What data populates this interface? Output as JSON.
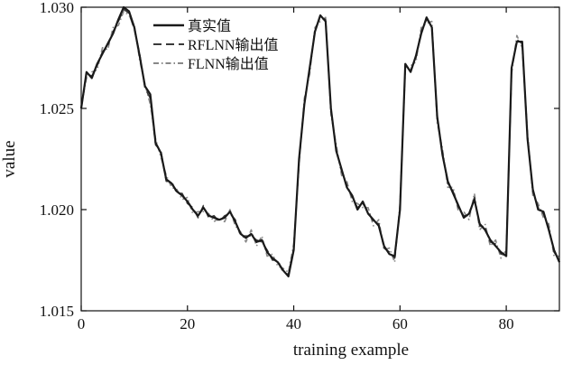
{
  "chart_data": {
    "type": "line",
    "title": "",
    "xlabel": "training example",
    "ylabel": "value",
    "xlim": [
      0,
      90
    ],
    "ylim": [
      1.015,
      1.03
    ],
    "xticks": [
      0,
      20,
      40,
      60,
      80
    ],
    "xtick_labels": [
      "0",
      "20",
      "40",
      "60",
      "80"
    ],
    "yticks": [
      1.015,
      1.02,
      1.025,
      1.03
    ],
    "ytick_labels": [
      "1.015",
      "1.020",
      "1.025",
      "1.030"
    ],
    "grid": false,
    "legend_position": "top-left",
    "x": [
      0,
      1,
      2,
      3,
      4,
      5,
      6,
      7,
      8,
      9,
      10,
      11,
      12,
      13,
      14,
      15,
      16,
      17,
      18,
      19,
      20,
      21,
      22,
      23,
      24,
      25,
      26,
      27,
      28,
      29,
      30,
      31,
      32,
      33,
      34,
      35,
      36,
      37,
      38,
      39,
      40,
      41,
      42,
      43,
      44,
      45,
      46,
      47,
      48,
      49,
      50,
      51,
      52,
      53,
      54,
      55,
      56,
      57,
      58,
      59,
      60,
      61,
      62,
      63,
      64,
      65,
      66,
      67,
      68,
      69,
      70,
      71,
      72,
      73,
      74,
      75,
      76,
      77,
      78,
      79,
      80,
      81,
      82,
      83,
      84,
      85,
      86,
      87,
      88,
      89,
      90
    ],
    "series": [
      {
        "name": "真实值",
        "color": "#1a1a1a",
        "style": "solid",
        "values": [
          1.025,
          1.0268,
          1.0265,
          1.0272,
          1.0277,
          1.0282,
          1.0287,
          1.0294,
          1.03,
          1.0298,
          1.029,
          1.0276,
          1.0261,
          1.0257,
          1.0233,
          1.0228,
          1.0215,
          1.0213,
          1.0209,
          1.0207,
          1.0204,
          1.02,
          1.0197,
          1.0201,
          1.0197,
          1.0196,
          1.0195,
          1.0196,
          1.0199,
          1.0194,
          1.0188,
          1.0186,
          1.0188,
          1.0184,
          1.0185,
          1.0179,
          1.0176,
          1.0174,
          1.017,
          1.0167,
          1.018,
          1.0225,
          1.0252,
          1.027,
          1.0288,
          1.0296,
          1.0293,
          1.025,
          1.0229,
          1.022,
          1.0211,
          1.0207,
          1.02,
          1.0204,
          1.0198,
          1.0195,
          1.0192,
          1.0182,
          1.0178,
          1.0177,
          1.02,
          1.0272,
          1.0268,
          1.0276,
          1.0287,
          1.0295,
          1.029,
          1.0246,
          1.0227,
          1.0214,
          1.0208,
          1.0202,
          1.0196,
          1.0198,
          1.0205,
          1.0193,
          1.019,
          1.0185,
          1.0182,
          1.0179,
          1.0177,
          1.027,
          1.0283,
          1.0283,
          1.0235,
          1.021,
          1.02,
          1.0199,
          1.019,
          1.018,
          1.0174
        ]
      },
      {
        "name": "RFLNN输出值",
        "color": "#3a3a3a",
        "style": "dashed",
        "values": [
          1.025,
          1.0267,
          1.0266,
          1.0271,
          1.0278,
          1.0281,
          1.0288,
          1.0293,
          1.0299,
          1.0297,
          1.0289,
          1.0277,
          1.026,
          1.0255,
          1.0232,
          1.0229,
          1.0214,
          1.0214,
          1.0208,
          1.0208,
          1.0203,
          1.0201,
          1.0196,
          1.0202,
          1.0196,
          1.0197,
          1.0194,
          1.0197,
          1.0198,
          1.0195,
          1.0187,
          1.0187,
          1.0187,
          1.0185,
          1.0184,
          1.018,
          1.0175,
          1.0175,
          1.0169,
          1.0168,
          1.0181,
          1.0224,
          1.0253,
          1.0269,
          1.0289,
          1.0295,
          1.0294,
          1.0249,
          1.023,
          1.0219,
          1.0212,
          1.0206,
          1.0201,
          1.0203,
          1.0199,
          1.0194,
          1.0193,
          1.0181,
          1.0179,
          1.0176,
          1.0201,
          1.0271,
          1.0269,
          1.0275,
          1.0288,
          1.0294,
          1.0291,
          1.0245,
          1.0228,
          1.0213,
          1.0209,
          1.0201,
          1.0197,
          1.0197,
          1.0206,
          1.0192,
          1.0191,
          1.0184,
          1.0183,
          1.0178,
          1.0178,
          1.0269,
          1.0284,
          1.0282,
          1.0236,
          1.0209,
          1.0201,
          1.0198,
          1.0191,
          1.0179,
          1.0175
        ]
      },
      {
        "name": "FLNN输出值",
        "color": "#888888",
        "style": "dashdot",
        "values": [
          1.0251,
          1.0265,
          1.0268,
          1.0269,
          1.028,
          1.0279,
          1.029,
          1.0291,
          1.0298,
          1.0296,
          1.0291,
          1.0274,
          1.0262,
          1.0252,
          1.0235,
          1.0226,
          1.0217,
          1.0211,
          1.021,
          1.0205,
          1.0206,
          1.0198,
          1.0199,
          1.0199,
          1.0198,
          1.0194,
          1.0196,
          1.0194,
          1.02,
          1.0192,
          1.0189,
          1.0184,
          1.019,
          1.0182,
          1.0187,
          1.0177,
          1.0178,
          1.0172,
          1.0171,
          1.0169,
          1.0183,
          1.0222,
          1.0255,
          1.0267,
          1.029,
          1.0293,
          1.0295,
          1.0247,
          1.0232,
          1.0217,
          1.0214,
          1.0204,
          1.0203,
          1.0201,
          1.0201,
          1.0192,
          1.0195,
          1.018,
          1.0181,
          1.0174,
          1.0203,
          1.0269,
          1.0271,
          1.0273,
          1.029,
          1.0292,
          1.0293,
          1.0243,
          1.023,
          1.0211,
          1.0211,
          1.0199,
          1.0199,
          1.0195,
          1.0208,
          1.019,
          1.0193,
          1.0182,
          1.0185,
          1.0176,
          1.018,
          1.0267,
          1.0286,
          1.028,
          1.0238,
          1.0207,
          1.0203,
          1.0196,
          1.0193,
          1.0177,
          1.0177
        ]
      }
    ]
  }
}
